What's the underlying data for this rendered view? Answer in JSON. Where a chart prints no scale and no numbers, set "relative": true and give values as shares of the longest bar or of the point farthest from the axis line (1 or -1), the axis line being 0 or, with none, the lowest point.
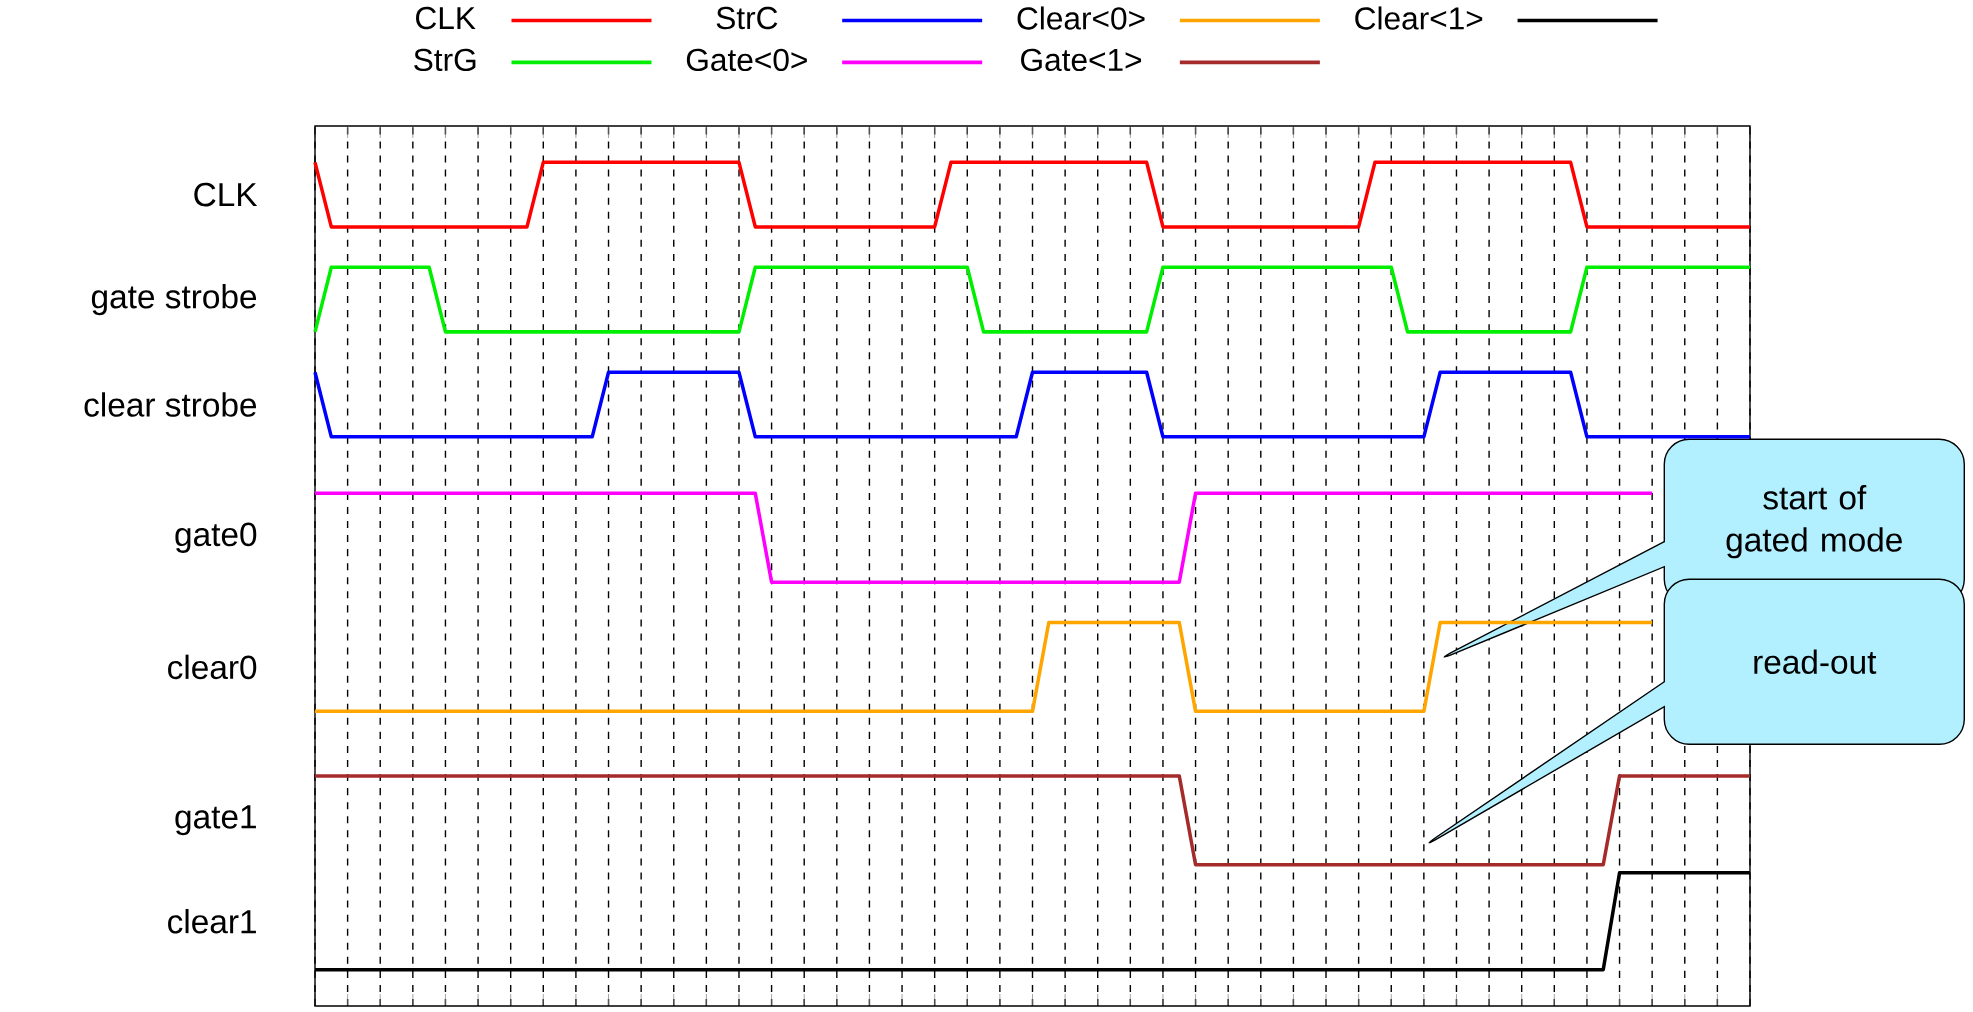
{
  "chart_data": {
    "type": "line",
    "relative": true,
    "grid": "x",
    "legend": "top",
    "line_style": "solid",
    "marker": "none",
    "categories": [
      null,
      null,
      null,
      null,
      null,
      null,
      null,
      null,
      null,
      null,
      null,
      null,
      null,
      null,
      null,
      null,
      null,
      null,
      null,
      null,
      null,
      null,
      null,
      null,
      null,
      null,
      null,
      null,
      null,
      null,
      null,
      null,
      null,
      null,
      null,
      null,
      null,
      null,
      null,
      null,
      null,
      null,
      null,
      null,
      null,
      null,
      null,
      null,
      null,
      null,
      null,
      null,
      null,
      null,
      null,
      null,
      null,
      null,
      null,
      null,
      null,
      null,
      null,
      null,
      null,
      null,
      null,
      null,
      null,
      null,
      null,
      null,
      null,
      null,
      null,
      null,
      null,
      null,
      null,
      null,
      null,
      null,
      null,
      null,
      null,
      null,
      null,
      null,
      null
    ],
    "series": [
      {
        "name": "CLK",
        "color": "#ff0000",
        "values": [
          1.0,
          0.92,
          0.92,
          0.92,
          0.92,
          0.92,
          0.92,
          0.92,
          0.92,
          0.92,
          0.92,
          0.92,
          0.92,
          0.92,
          1.0,
          1.0,
          1.0,
          1.0,
          1.0,
          1.0,
          1.0,
          1.0,
          1.0,
          1.0,
          1.0,
          1.0,
          1.0,
          0.92,
          0.92,
          0.92,
          0.92,
          0.92,
          0.92,
          0.92,
          0.92,
          0.92,
          0.92,
          0.92,
          0.92,
          1.0,
          1.0,
          1.0,
          1.0,
          1.0,
          1.0,
          1.0,
          1.0,
          1.0,
          1.0,
          1.0,
          1.0,
          1.0,
          0.92,
          0.92,
          0.92,
          0.92,
          0.92,
          0.92,
          0.92,
          0.92,
          0.92,
          0.92,
          0.92,
          0.92,
          0.92,
          1.0,
          1.0,
          1.0,
          1.0,
          1.0,
          1.0,
          1.0,
          1.0,
          1.0,
          1.0,
          1.0,
          1.0,
          1.0,
          0.92,
          0.92,
          0.92,
          0.92,
          0.92,
          0.92,
          0.92,
          0.92,
          0.92,
          0.92,
          0.92
        ]
      },
      {
        "name": "StrG",
        "color": "#00ee00",
        "values": [
          0.79,
          0.87,
          0.87,
          0.87,
          0.87,
          0.87,
          0.87,
          0.87,
          0.79,
          0.79,
          0.79,
          0.79,
          0.79,
          0.79,
          0.79,
          0.79,
          0.79,
          0.79,
          0.79,
          0.79,
          0.79,
          0.79,
          0.79,
          0.79,
          0.79,
          0.79,
          0.79,
          0.87,
          0.87,
          0.87,
          0.87,
          0.87,
          0.87,
          0.87,
          0.87,
          0.87,
          0.87,
          0.87,
          0.87,
          0.87,
          0.87,
          0.79,
          0.79,
          0.79,
          0.79,
          0.79,
          0.79,
          0.79,
          0.79,
          0.79,
          0.79,
          0.79,
          0.87,
          0.87,
          0.87,
          0.87,
          0.87,
          0.87,
          0.87,
          0.87,
          0.87,
          0.87,
          0.87,
          0.87,
          0.87,
          0.87,
          0.87,
          0.79,
          0.79,
          0.79,
          0.79,
          0.79,
          0.79,
          0.79,
          0.79,
          0.79,
          0.79,
          0.79,
          0.87,
          0.87,
          0.87,
          0.87,
          0.87,
          0.87,
          0.87,
          0.87,
          0.87,
          0.87,
          0.87
        ]
      },
      {
        "name": "StrC",
        "color": "#0000ff",
        "values": [
          0.74,
          0.66,
          0.66,
          0.66,
          0.66,
          0.66,
          0.66,
          0.66,
          0.66,
          0.66,
          0.66,
          0.66,
          0.66,
          0.66,
          0.66,
          0.66,
          0.66,
          0.66,
          0.74,
          0.74,
          0.74,
          0.74,
          0.74,
          0.74,
          0.74,
          0.74,
          0.74,
          0.66,
          0.66,
          0.66,
          0.66,
          0.66,
          0.66,
          0.66,
          0.66,
          0.66,
          0.66,
          0.66,
          0.66,
          0.66,
          0.66,
          0.66,
          0.66,
          0.66,
          0.74,
          0.74,
          0.74,
          0.74,
          0.74,
          0.74,
          0.74,
          0.74,
          0.66,
          0.66,
          0.66,
          0.66,
          0.66,
          0.66,
          0.66,
          0.66,
          0.66,
          0.66,
          0.66,
          0.66,
          0.66,
          0.66,
          0.66,
          0.66,
          0.66,
          0.74,
          0.74,
          0.74,
          0.74,
          0.74,
          0.74,
          0.74,
          0.74,
          0.74,
          0.66,
          0.66,
          0.66,
          0.66,
          0.66,
          0.66,
          0.66,
          0.66,
          0.66,
          0.66,
          0.66
        ]
      },
      {
        "name": "Gate<0>",
        "color": "#ff00ff",
        "values": [
          0.59,
          0.59,
          0.59,
          0.59,
          0.59,
          0.59,
          0.59,
          0.59,
          0.59,
          0.59,
          0.59,
          0.59,
          0.59,
          0.59,
          0.59,
          0.59,
          0.59,
          0.59,
          0.59,
          0.59,
          0.59,
          0.59,
          0.59,
          0.59,
          0.59,
          0.59,
          0.59,
          0.59,
          0.48,
          0.48,
          0.48,
          0.48,
          0.48,
          0.48,
          0.48,
          0.48,
          0.48,
          0.48,
          0.48,
          0.48,
          0.48,
          0.48,
          0.48,
          0.48,
          0.48,
          0.48,
          0.48,
          0.48,
          0.48,
          0.48,
          0.48,
          0.48,
          0.48,
          0.48,
          0.59,
          0.59,
          0.59,
          0.59,
          0.59,
          0.59,
          0.59,
          0.59,
          0.59,
          0.59,
          0.59,
          0.59,
          0.59,
          0.59,
          0.59,
          0.59,
          0.59,
          0.59,
          0.59,
          0.59,
          0.59,
          0.59,
          0.59,
          0.59,
          0.59,
          0.59,
          0.59,
          0.59,
          0.59,
          null,
          null,
          null,
          null,
          null,
          null
        ]
      },
      {
        "name": "Clear<0>",
        "color": "#ffa500",
        "values": [
          0.32,
          0.32,
          0.32,
          0.32,
          0.32,
          0.32,
          0.32,
          0.32,
          0.32,
          0.32,
          0.32,
          0.32,
          0.32,
          0.32,
          0.32,
          0.32,
          0.32,
          0.32,
          0.32,
          0.32,
          0.32,
          0.32,
          0.32,
          0.32,
          0.32,
          0.32,
          0.32,
          0.32,
          0.32,
          0.32,
          0.32,
          0.32,
          0.32,
          0.32,
          0.32,
          0.32,
          0.32,
          0.32,
          0.32,
          0.32,
          0.32,
          0.32,
          0.32,
          0.32,
          0.32,
          0.43,
          0.43,
          0.43,
          0.43,
          0.43,
          0.43,
          0.43,
          0.43,
          0.43,
          0.32,
          0.32,
          0.32,
          0.32,
          0.32,
          0.32,
          0.32,
          0.32,
          0.32,
          0.32,
          0.32,
          0.32,
          0.32,
          0.32,
          0.32,
          0.43,
          0.43,
          0.43,
          0.43,
          0.43,
          0.43,
          0.43,
          0.43,
          0.43,
          0.43,
          0.43,
          0.43,
          0.43,
          0.43,
          null,
          null,
          null,
          null,
          null,
          null
        ]
      },
      {
        "name": "Gate<1>",
        "color": "#a52a2a",
        "values": [
          0.24,
          0.24,
          0.24,
          0.24,
          0.24,
          0.24,
          0.24,
          0.24,
          0.24,
          0.24,
          0.24,
          0.24,
          0.24,
          0.24,
          0.24,
          0.24,
          0.24,
          0.24,
          0.24,
          0.24,
          0.24,
          0.24,
          0.24,
          0.24,
          0.24,
          0.24,
          0.24,
          0.24,
          0.24,
          0.24,
          0.24,
          0.24,
          0.24,
          0.24,
          0.24,
          0.24,
          0.24,
          0.24,
          0.24,
          0.24,
          0.24,
          0.24,
          0.24,
          0.24,
          0.24,
          0.24,
          0.24,
          0.24,
          0.24,
          0.24,
          0.24,
          0.24,
          0.24,
          0.24,
          0.13,
          0.13,
          0.13,
          0.13,
          0.13,
          0.13,
          0.13,
          0.13,
          0.13,
          0.13,
          0.13,
          0.13,
          0.13,
          0.13,
          0.13,
          0.13,
          0.13,
          0.13,
          0.13,
          0.13,
          0.13,
          0.13,
          0.13,
          0.13,
          0.13,
          0.13,
          0.24,
          0.24,
          0.24,
          0.24,
          0.24,
          0.24,
          0.24,
          0.24,
          0.24
        ]
      },
      {
        "name": "Clear<1>",
        "color": "#000000",
        "values": [
          0,
          0,
          0,
          0,
          0,
          0,
          0,
          0,
          0,
          0,
          0,
          0,
          0,
          0,
          0,
          0,
          0,
          0,
          0,
          0,
          0,
          0,
          0,
          0,
          0,
          0,
          0,
          0,
          0,
          0,
          0,
          0,
          0,
          0,
          0,
          0,
          0,
          0,
          0,
          0,
          0,
          0,
          0,
          0,
          0,
          0,
          0,
          0,
          0,
          0,
          0,
          0,
          0,
          0,
          0,
          0,
          0,
          0,
          0,
          0,
          0,
          0,
          0,
          0,
          0,
          0,
          0,
          0,
          0,
          0,
          0,
          0,
          0,
          0,
          0,
          0,
          0,
          0,
          0,
          0,
          0.12,
          0.12,
          0.12,
          0.12,
          0.12,
          0.12,
          0.12,
          0.12,
          0.12
        ]
      }
    ],
    "annotations": [
      "CLK",
      "gate strobe",
      "clear strobe",
      "gate0",
      "clear0",
      "gate1",
      "clear1",
      "start of gated mode",
      "read-out"
    ]
  }
}
